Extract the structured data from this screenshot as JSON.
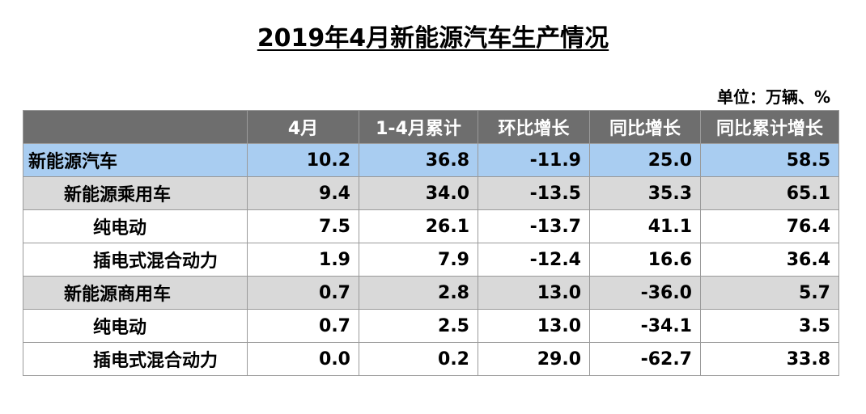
{
  "title": "2019年4月新能源汽车生产情况",
  "unit_note": "单位：万辆、%",
  "table": {
    "columns": [
      "",
      "4月",
      "1-4月累计",
      "环比增长",
      "同比增长",
      "同比累计增长"
    ],
    "rows": [
      {
        "level": 0,
        "label": "新能源汽车",
        "values": [
          "10.2",
          "36.8",
          "-11.9",
          "25.0",
          "58.5"
        ]
      },
      {
        "level": 1,
        "label": "新能源乘用车",
        "values": [
          "9.4",
          "34.0",
          "-13.5",
          "35.3",
          "65.1"
        ]
      },
      {
        "level": 2,
        "label": "纯电动",
        "values": [
          "7.5",
          "26.1",
          "-13.7",
          "41.1",
          "76.4"
        ]
      },
      {
        "level": 2,
        "label": "插电式混合动力",
        "values": [
          "1.9",
          "7.9",
          "-12.4",
          "16.6",
          "36.4"
        ]
      },
      {
        "level": 1,
        "label": "新能源商用车",
        "values": [
          "0.7",
          "2.8",
          "13.0",
          "-36.0",
          "5.7"
        ]
      },
      {
        "level": 2,
        "label": "纯电动",
        "values": [
          "0.7",
          "2.5",
          "13.0",
          "-34.1",
          "3.5"
        ]
      },
      {
        "level": 2,
        "label": "插电式混合动力",
        "values": [
          "0.0",
          "0.2",
          "29.0",
          "-62.7",
          "33.8"
        ]
      }
    ]
  },
  "colors": {
    "header_bg": "#6e6e6e",
    "header_text": "#ffffff",
    "total_row_bg": "#a9cdf1",
    "subtotal_row_bg": "#d9d9d9",
    "detail_row_bg": "#ffffff"
  }
}
